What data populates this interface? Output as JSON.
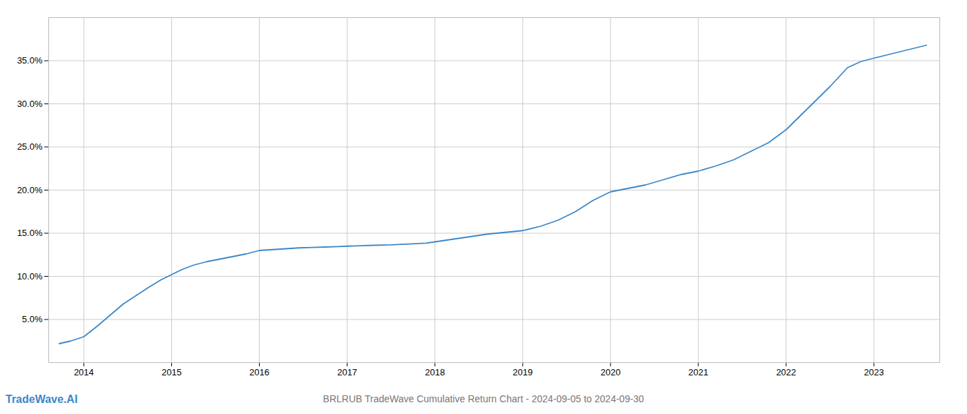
{
  "chart_data": {
    "type": "line",
    "title": "BRLRUB TradeWave Cumulative Return Chart - 2024-09-05 to 2024-09-30",
    "annotations": [
      "TradeWave.AI"
    ],
    "color": "#3a87c8",
    "grid": true,
    "x": [
      2013.72,
      2013.85,
      2014.0,
      2014.15,
      2014.3,
      2014.45,
      2014.6,
      2014.75,
      2014.88,
      2015.0,
      2015.12,
      2015.25,
      2015.4,
      2015.55,
      2015.7,
      2015.85,
      2016.0,
      2016.15,
      2016.3,
      2016.45,
      2016.6,
      2016.75,
      2016.9,
      2017.0,
      2017.15,
      2017.3,
      2017.5,
      2017.7,
      2017.9,
      2018.0,
      2018.2,
      2018.4,
      2018.6,
      2018.8,
      2019.0,
      2019.2,
      2019.4,
      2019.6,
      2019.8,
      2020.0,
      2020.2,
      2020.4,
      2020.6,
      2020.8,
      2021.0,
      2021.2,
      2021.4,
      2021.6,
      2021.8,
      2022.0,
      2022.15,
      2022.3,
      2022.5,
      2022.7,
      2022.85,
      2023.0,
      2023.2,
      2023.4,
      2023.6
    ],
    "values": [
      2.2,
      2.5,
      3.0,
      4.2,
      5.5,
      6.8,
      7.8,
      8.8,
      9.6,
      10.2,
      10.8,
      11.3,
      11.7,
      12.0,
      12.3,
      12.6,
      13.0,
      13.1,
      13.2,
      13.3,
      13.35,
      13.4,
      13.45,
      13.5,
      13.55,
      13.6,
      13.65,
      13.75,
      13.85,
      14.0,
      14.3,
      14.6,
      14.9,
      15.1,
      15.3,
      15.8,
      16.5,
      17.5,
      18.8,
      19.8,
      20.2,
      20.6,
      21.2,
      21.8,
      22.2,
      22.8,
      23.5,
      24.5,
      25.5,
      27.0,
      28.5,
      30.0,
      32.0,
      34.2,
      34.9,
      35.3,
      35.8,
      36.3,
      36.8
    ],
    "xlim": [
      2013.6,
      2023.75
    ],
    "xticks": [
      2014,
      2015,
      2016,
      2017,
      2018,
      2019,
      2020,
      2021,
      2022,
      2023
    ],
    "ylim": [
      0,
      40
    ],
    "yticks": [
      {
        "value": 5.0,
        "label": "5.0%"
      },
      {
        "value": 10.0,
        "label": "10.0%"
      },
      {
        "value": 15.0,
        "label": "15.0%"
      },
      {
        "value": 20.0,
        "label": "20.0%"
      },
      {
        "value": 25.0,
        "label": "25.0%"
      },
      {
        "value": 30.0,
        "label": "30.0%"
      },
      {
        "value": 35.0,
        "label": "35.0%"
      }
    ]
  }
}
